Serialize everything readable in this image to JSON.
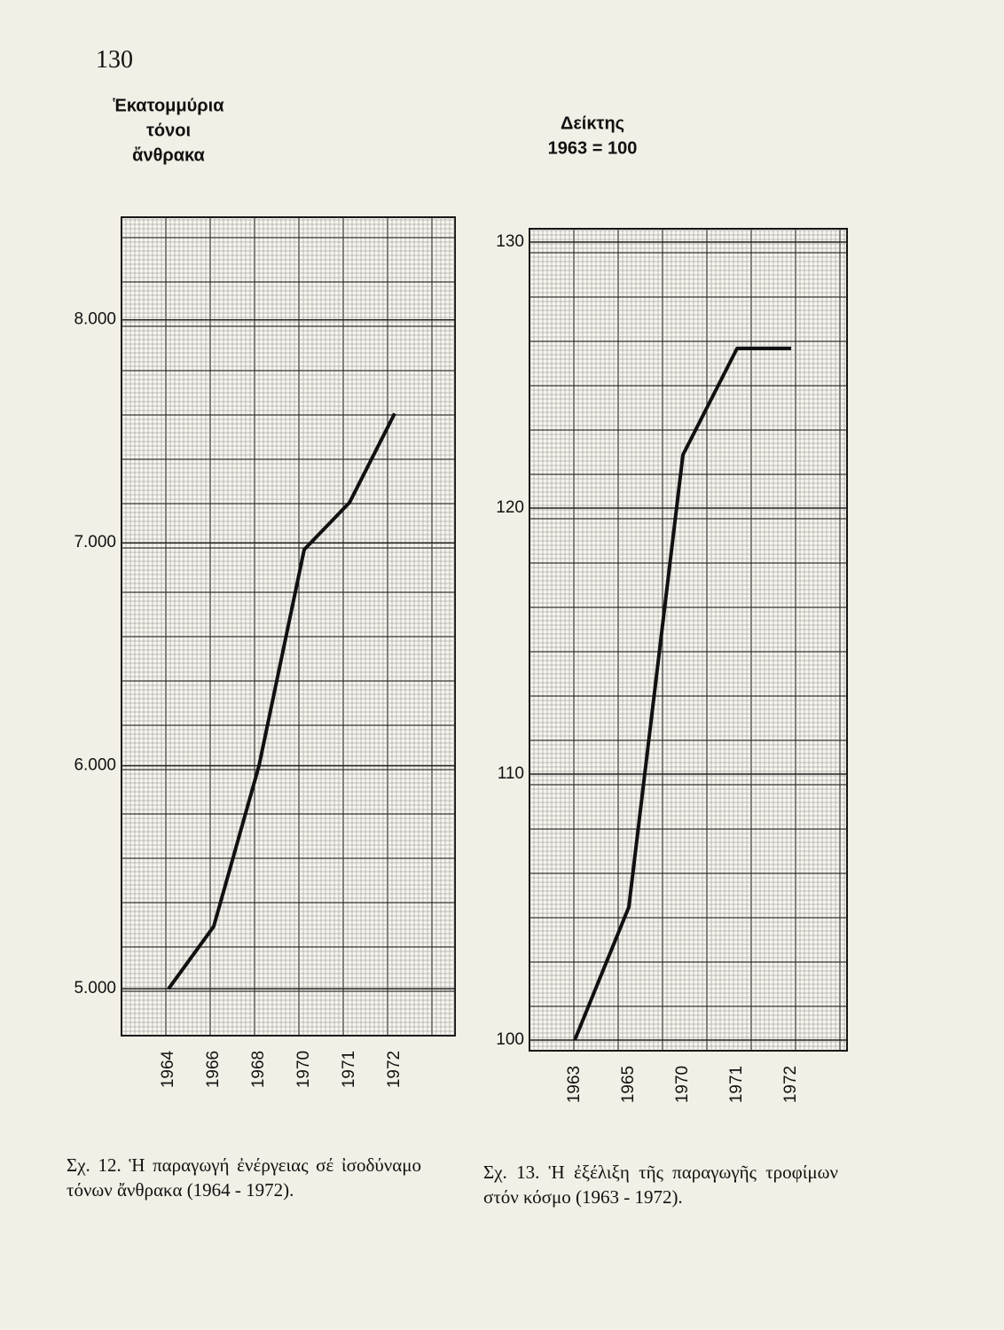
{
  "page_number": "130",
  "chart_data": [
    {
      "type": "line",
      "ylabel": [
        "Ἑκατομμύρια",
        "τόνοι",
        "ἄνθρακα"
      ],
      "categories": [
        "1964",
        "1966",
        "1968",
        "1970",
        "1971",
        "1972"
      ],
      "values": [
        5000,
        5280,
        6000,
        6970,
        7180,
        7580
      ],
      "color": "#111111",
      "ylim": [
        4790,
        8460
      ],
      "yticks": [
        {
          "value": 5000,
          "label": "5.000"
        },
        {
          "value": 6000,
          "label": "6.000"
        },
        {
          "value": 7000,
          "label": "7.000"
        },
        {
          "value": 8000,
          "label": "8.000"
        }
      ],
      "grid": true,
      "caption": "Σχ. 12. Ἡ παραγωγή ἐνέργειας σέ ἰσοδύναμο τόνων ἄνθρακα (1964 - 1972)."
    },
    {
      "type": "line",
      "ylabel": [
        "Δείκτης",
        "1963 = 100"
      ],
      "categories": [
        "1963",
        "1965",
        "1970",
        "1971",
        "1972"
      ],
      "values": [
        100,
        105,
        122,
        126,
        126
      ],
      "color": "#111111",
      "ylim": [
        99.6,
        130.5
      ],
      "yticks": [
        100,
        110,
        120,
        130
      ],
      "grid": true,
      "caption": "Σχ. 13. Ἡ ἐξέλιξη τῆς παραγωγῆς τροφίμων στόν κόσμο (1963 - 1972)."
    }
  ]
}
